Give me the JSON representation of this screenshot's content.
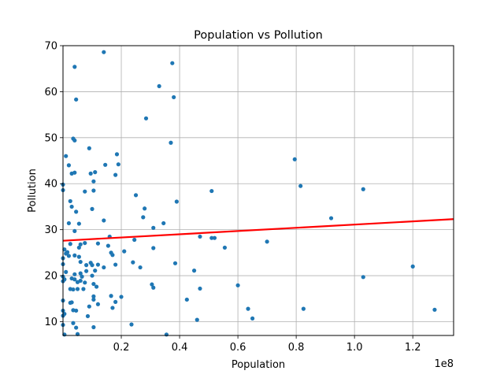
{
  "chart_data": {
    "type": "scatter",
    "title": "Population vs Pollution",
    "xlabel": "Population",
    "ylabel": "Pollution",
    "x_offset_label": "1e8",
    "xlim": [
      0,
      1.34
    ],
    "ylim": [
      7,
      70
    ],
    "x_ticks": [
      0.2,
      0.4,
      0.6,
      0.8,
      1.0,
      1.2
    ],
    "x_tick_labels": [
      "0.2",
      "0.4",
      "0.6",
      "0.8",
      "1.0",
      "1.2"
    ],
    "y_ticks": [
      10,
      20,
      30,
      40,
      50,
      60,
      70
    ],
    "y_tick_labels": [
      "10",
      "20",
      "30",
      "40",
      "50",
      "60",
      "70"
    ],
    "grid": true,
    "point_color": "#1f77b4",
    "fit_line_color": "#ff0000",
    "fit_line": {
      "x": [
        0,
        1.34
      ],
      "y": [
        27.6,
        32.3
      ]
    },
    "points": [
      [
        0.14,
        68.6
      ],
      [
        0.375,
        66.2
      ],
      [
        0.04,
        65.4
      ],
      [
        0.33,
        61.2
      ],
      [
        0.38,
        58.8
      ],
      [
        0.045,
        58.3
      ],
      [
        0.285,
        54.2
      ],
      [
        0.035,
        49.8
      ],
      [
        0.04,
        49.4
      ],
      [
        0.37,
        48.9
      ],
      [
        0.09,
        47.7
      ],
      [
        0.185,
        46.4
      ],
      [
        0.01,
        46.0
      ],
      [
        0.795,
        45.3
      ],
      [
        0.19,
        44.2
      ],
      [
        0.145,
        44.1
      ],
      [
        0.02,
        44.0
      ],
      [
        0.11,
        42.5
      ],
      [
        0.04,
        42.4
      ],
      [
        0.03,
        42.2
      ],
      [
        0.095,
        42.2
      ],
      [
        0.18,
        41.9
      ],
      [
        0.105,
        40.5
      ],
      [
        0.0,
        39.8
      ],
      [
        0.815,
        39.5
      ],
      [
        0.0,
        38.6
      ],
      [
        1.03,
        38.8
      ],
      [
        0.105,
        38.5
      ],
      [
        0.075,
        38.3
      ],
      [
        0.51,
        38.4
      ],
      [
        0.25,
        37.5
      ],
      [
        0.39,
        36.1
      ],
      [
        0.025,
        36.2
      ],
      [
        0.03,
        35.0
      ],
      [
        0.28,
        34.6
      ],
      [
        0.045,
        33.9
      ],
      [
        0.1,
        34.5
      ],
      [
        0.055,
        31.3
      ],
      [
        0.275,
        32.7
      ],
      [
        0.14,
        32.0
      ],
      [
        0.02,
        31.4
      ],
      [
        0.92,
        32.5
      ],
      [
        0.345,
        31.4
      ],
      [
        0.31,
        30.4
      ],
      [
        0.04,
        29.7
      ],
      [
        0.16,
        28.5
      ],
      [
        0.47,
        28.5
      ],
      [
        0.51,
        28.2
      ],
      [
        0.52,
        28.2
      ],
      [
        0.245,
        27.8
      ],
      [
        0.12,
        27.0
      ],
      [
        0.7,
        27.4
      ],
      [
        0.06,
        26.8
      ],
      [
        0.025,
        26.9
      ],
      [
        0.075,
        27.1
      ],
      [
        0.155,
        26.5
      ],
      [
        0.055,
        26.1
      ],
      [
        0.31,
        26.0
      ],
      [
        0.555,
        26.1
      ],
      [
        0.005,
        25.7
      ],
      [
        0.015,
        25.1
      ],
      [
        0.21,
        25.3
      ],
      [
        0.01,
        24.8
      ],
      [
        0.02,
        24.3
      ],
      [
        0.04,
        24.4
      ],
      [
        0.055,
        24.1
      ],
      [
        0.17,
        24.5
      ],
      [
        0.0,
        23.8
      ],
      [
        0.165,
        25.0
      ],
      [
        0.06,
        23.0
      ],
      [
        0.095,
        22.8
      ],
      [
        0.24,
        22.9
      ],
      [
        0.385,
        22.7
      ],
      [
        0.0,
        22.5
      ],
      [
        0.08,
        22.3
      ],
      [
        0.1,
        22.3
      ],
      [
        0.12,
        22.4
      ],
      [
        0.14,
        21.8
      ],
      [
        0.18,
        22.4
      ],
      [
        0.265,
        21.8
      ],
      [
        1.2,
        22.0
      ],
      [
        0.01,
        20.8
      ],
      [
        0.04,
        20.3
      ],
      [
        0.06,
        20.5
      ],
      [
        0.08,
        21.0
      ],
      [
        0.11,
        21.1
      ],
      [
        0.45,
        21.1
      ],
      [
        0.0,
        19.8
      ],
      [
        0.005,
        19.2
      ],
      [
        0.03,
        19.4
      ],
      [
        0.04,
        19.2
      ],
      [
        0.065,
        19.8
      ],
      [
        0.1,
        20.0
      ],
      [
        0.05,
        18.6
      ],
      [
        0.06,
        18.9
      ],
      [
        1.03,
        19.7
      ],
      [
        0.0,
        18.8
      ],
      [
        0.075,
        18.5
      ],
      [
        0.105,
        18.2
      ],
      [
        0.115,
        17.6
      ],
      [
        0.305,
        18.1
      ],
      [
        0.31,
        17.4
      ],
      [
        0.47,
        17.2
      ],
      [
        0.6,
        17.9
      ],
      [
        0.025,
        17.1
      ],
      [
        0.035,
        17.0
      ],
      [
        0.05,
        17.1
      ],
      [
        0.07,
        17.1
      ],
      [
        0.2,
        15.4
      ],
      [
        0.105,
        15.5
      ],
      [
        0.165,
        15.6
      ],
      [
        0.105,
        14.8
      ],
      [
        0.18,
        14.3
      ],
      [
        0.425,
        14.8
      ],
      [
        0.0,
        14.6
      ],
      [
        0.025,
        14.1
      ],
      [
        0.03,
        14.2
      ],
      [
        0.12,
        13.8
      ],
      [
        0.09,
        13.3
      ],
      [
        0.17,
        13.0
      ],
      [
        0.0,
        12.4
      ],
      [
        0.035,
        12.5
      ],
      [
        0.045,
        12.4
      ],
      [
        0.635,
        12.8
      ],
      [
        0.825,
        12.8
      ],
      [
        1.275,
        12.6
      ],
      [
        0.005,
        11.7
      ],
      [
        0.0,
        11.3
      ],
      [
        0.085,
        11.2
      ],
      [
        0.46,
        10.4
      ],
      [
        0.65,
        10.7
      ],
      [
        0.035,
        9.7
      ],
      [
        0.0,
        9.3
      ],
      [
        0.235,
        9.4
      ],
      [
        0.045,
        8.7
      ],
      [
        0.105,
        8.8
      ],
      [
        0.05,
        7.3
      ],
      [
        0.355,
        7.2
      ],
      [
        0.005,
        7.2
      ]
    ]
  }
}
